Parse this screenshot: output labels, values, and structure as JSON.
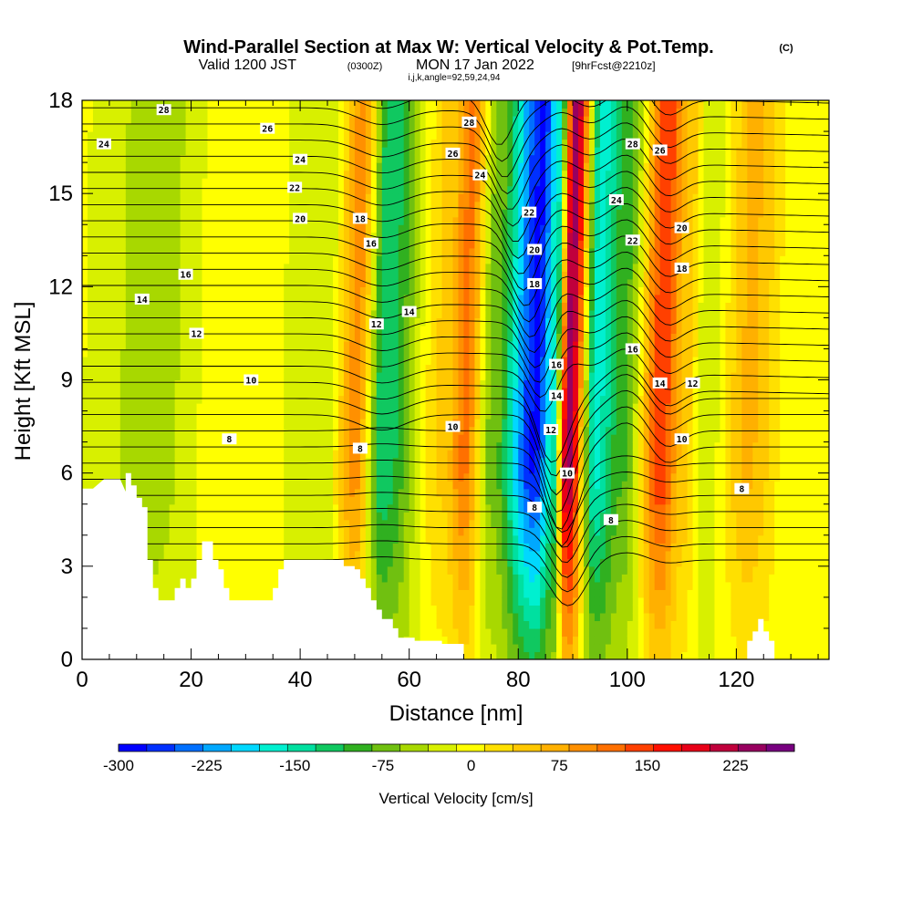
{
  "header": {
    "title": "Wind-Parallel Section at Max W: Vertical Velocity & Pot.Temp.",
    "copyright": "(C)",
    "valid_prefix": "Valid 1200 JST",
    "valid_zulu": "(0300Z)",
    "valid_date": "MON 17 Jan 2022",
    "forecast": "[9hrFcst@2210z]",
    "params": "i,j,k,angle=92,59,24,94"
  },
  "chart_data": {
    "type": "heatmap",
    "xlabel": "Distance [nm]",
    "ylabel": "Height [Kft MSL]",
    "xlim": [
      0,
      137
    ],
    "ylim": [
      0,
      18
    ],
    "x_ticks": [
      "0",
      "20",
      "40",
      "60",
      "80",
      "100",
      "120"
    ],
    "y_ticks": [
      "0",
      "3",
      "6",
      "9",
      "12",
      "15",
      "18"
    ],
    "colorbar": {
      "label": "Vertical Velocity [cm/s]",
      "range": [
        -300,
        275
      ],
      "step": 25,
      "tick_labels": [
        "-300",
        "-225",
        "-150",
        "-75",
        "0",
        "75",
        "150",
        "225"
      ],
      "colors": [
        "#0000ff",
        "#0030ff",
        "#0070ff",
        "#00a8ff",
        "#00d8ff",
        "#00f0d0",
        "#00e0a0",
        "#10c860",
        "#30b020",
        "#70c010",
        "#a8d800",
        "#d8f000",
        "#ffff00",
        "#ffe000",
        "#ffc800",
        "#ffb000",
        "#ff9000",
        "#ff7000",
        "#ff4000",
        "#ff1000",
        "#e80018",
        "#c0003c",
        "#980060",
        "#780080"
      ]
    },
    "velocity_features": [
      {
        "x": 0,
        "w": 0
      },
      {
        "x": 12,
        "w": -40
      },
      {
        "x": 28,
        "w": 25
      },
      {
        "x": 44,
        "w": -20
      },
      {
        "x": 50,
        "w": 110
      },
      {
        "x": 55,
        "w": -120
      },
      {
        "x": 66,
        "w": 55
      },
      {
        "x": 70,
        "w": 130
      },
      {
        "x": 75,
        "w": -60
      },
      {
        "x": 83,
        "w": -280
      },
      {
        "x": 86,
        "w": -160
      },
      {
        "x": 89,
        "w": 260
      },
      {
        "x": 94,
        "w": -160
      },
      {
        "x": 99,
        "w": -80
      },
      {
        "x": 106,
        "w": 170
      },
      {
        "x": 110,
        "w": 70
      },
      {
        "x": 114,
        "w": -20
      },
      {
        "x": 122,
        "w": 80
      },
      {
        "x": 130,
        "w": 10
      },
      {
        "x": 137,
        "w": 0
      }
    ],
    "terrain": [
      [
        0,
        5.5
      ],
      [
        2,
        5.5
      ],
      [
        4,
        5.8
      ],
      [
        6,
        5.8
      ],
      [
        7,
        5.8
      ],
      [
        8,
        5.4
      ],
      [
        8,
        6.0
      ],
      [
        9,
        6.0
      ],
      [
        9,
        5.6
      ],
      [
        10,
        5.6
      ],
      [
        10,
        5.2
      ],
      [
        11,
        5.2
      ],
      [
        11,
        4.9
      ],
      [
        12,
        4.9
      ],
      [
        12,
        3.2
      ],
      [
        13,
        3.2
      ],
      [
        13,
        2.3
      ],
      [
        14,
        2.3
      ],
      [
        14,
        1.9
      ],
      [
        17,
        1.9
      ],
      [
        17,
        2.3
      ],
      [
        18,
        2.3
      ],
      [
        18,
        2.6
      ],
      [
        19,
        2.6
      ],
      [
        19,
        2.3
      ],
      [
        20,
        2.3
      ],
      [
        20,
        2.6
      ],
      [
        21,
        2.6
      ],
      [
        21,
        3.2
      ],
      [
        22,
        3.2
      ],
      [
        22,
        3.8
      ],
      [
        24,
        3.8
      ],
      [
        24,
        3.2
      ],
      [
        25,
        3.2
      ],
      [
        25,
        2.9
      ],
      [
        26,
        2.9
      ],
      [
        26,
        2.3
      ],
      [
        27,
        2.3
      ],
      [
        27,
        1.9
      ],
      [
        35,
        1.9
      ],
      [
        35,
        2.3
      ],
      [
        36,
        2.3
      ],
      [
        36,
        2.9
      ],
      [
        37,
        2.9
      ],
      [
        37,
        3.2
      ],
      [
        48,
        3.2
      ],
      [
        48,
        3.0
      ],
      [
        50,
        3.0
      ],
      [
        50,
        2.9
      ],
      [
        51,
        2.9
      ],
      [
        51,
        2.6
      ],
      [
        52,
        2.6
      ],
      [
        52,
        2.3
      ],
      [
        53,
        2.3
      ],
      [
        53,
        1.9
      ],
      [
        54,
        1.9
      ],
      [
        54,
        1.6
      ],
      [
        55,
        1.6
      ],
      [
        55,
        1.3
      ],
      [
        57,
        1.3
      ],
      [
        57,
        1.0
      ],
      [
        58,
        1.0
      ],
      [
        58,
        0.7
      ],
      [
        61,
        0.7
      ],
      [
        61,
        0.6
      ],
      [
        66,
        0.6
      ],
      [
        66,
        0.5
      ],
      [
        70,
        0.5
      ],
      [
        70,
        0
      ]
    ],
    "terrain_bump": [
      [
        122,
        0
      ],
      [
        122,
        0.6
      ],
      [
        123,
        0.6
      ],
      [
        123,
        0.9
      ],
      [
        124,
        0.9
      ],
      [
        124,
        1.3
      ],
      [
        125,
        1.3
      ],
      [
        125,
        0.9
      ],
      [
        126,
        0.9
      ],
      [
        126,
        0.6
      ],
      [
        127,
        0.6
      ],
      [
        127,
        0
      ]
    ],
    "isentropes": [
      {
        "label": "8"
      },
      {
        "label": "10"
      },
      {
        "label": "12"
      },
      {
        "label": "14"
      },
      {
        "label": "16"
      },
      {
        "label": "18"
      },
      {
        "label": "20"
      },
      {
        "label": "22"
      },
      {
        "label": "24"
      },
      {
        "label": "26"
      },
      {
        "label": "28"
      }
    ],
    "contour_labels": [
      {
        "x": 27,
        "y": 7.1,
        "t": "8"
      },
      {
        "x": 51,
        "y": 6.8,
        "t": "8"
      },
      {
        "x": 83,
        "y": 4.9,
        "t": "8"
      },
      {
        "x": 97,
        "y": 4.5,
        "t": "8"
      },
      {
        "x": 121,
        "y": 5.5,
        "t": "8"
      },
      {
        "x": 31,
        "y": 9.0,
        "t": "10"
      },
      {
        "x": 68,
        "y": 7.5,
        "t": "10"
      },
      {
        "x": 89,
        "y": 6.0,
        "t": "10"
      },
      {
        "x": 110,
        "y": 7.1,
        "t": "10"
      },
      {
        "x": 21,
        "y": 10.5,
        "t": "12"
      },
      {
        "x": 54,
        "y": 10.8,
        "t": "12"
      },
      {
        "x": 86,
        "y": 7.4,
        "t": "12"
      },
      {
        "x": 112,
        "y": 8.9,
        "t": "12"
      },
      {
        "x": 11,
        "y": 11.6,
        "t": "14"
      },
      {
        "x": 60,
        "y": 11.2,
        "t": "14"
      },
      {
        "x": 87,
        "y": 8.5,
        "t": "14"
      },
      {
        "x": 106,
        "y": 8.9,
        "t": "14"
      },
      {
        "x": 19,
        "y": 12.4,
        "t": "16"
      },
      {
        "x": 53,
        "y": 13.4,
        "t": "16"
      },
      {
        "x": 87,
        "y": 9.5,
        "t": "16"
      },
      {
        "x": 101,
        "y": 10.0,
        "t": "16"
      },
      {
        "x": 51,
        "y": 14.2,
        "t": "18"
      },
      {
        "x": 83,
        "y": 12.1,
        "t": "18"
      },
      {
        "x": 110,
        "y": 12.6,
        "t": "18"
      },
      {
        "x": 40,
        "y": 14.2,
        "t": "20"
      },
      {
        "x": 83,
        "y": 13.2,
        "t": "20"
      },
      {
        "x": 110,
        "y": 13.9,
        "t": "20"
      },
      {
        "x": 39,
        "y": 15.2,
        "t": "22"
      },
      {
        "x": 82,
        "y": 14.4,
        "t": "22"
      },
      {
        "x": 101,
        "y": 13.5,
        "t": "22"
      },
      {
        "x": 4,
        "y": 16.6,
        "t": "24"
      },
      {
        "x": 40,
        "y": 16.1,
        "t": "24"
      },
      {
        "x": 73,
        "y": 15.6,
        "t": "24"
      },
      {
        "x": 98,
        "y": 14.8,
        "t": "24"
      },
      {
        "x": 34,
        "y": 17.1,
        "t": "26"
      },
      {
        "x": 68,
        "y": 16.3,
        "t": "26"
      },
      {
        "x": 106,
        "y": 16.4,
        "t": "26"
      },
      {
        "x": 15,
        "y": 17.7,
        "t": "28"
      },
      {
        "x": 71,
        "y": 17.3,
        "t": "28"
      },
      {
        "x": 101,
        "y": 16.6,
        "t": "28"
      }
    ]
  }
}
